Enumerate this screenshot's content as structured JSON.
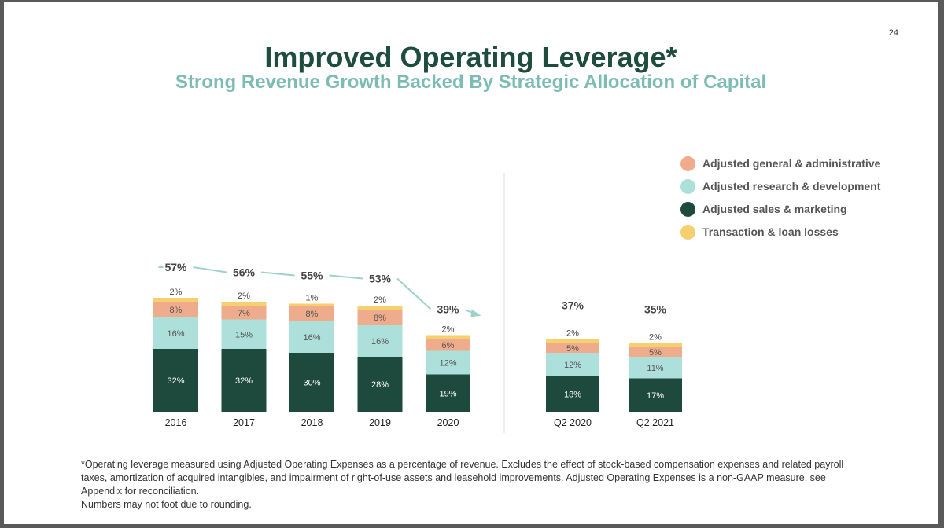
{
  "page_number": "24",
  "title": "Improved Operating Leverage*",
  "subtitle": "Strong Revenue Growth Backed By Strategic Allocation of Capital",
  "colors": {
    "sales_marketing": "#1e4a3d",
    "research_development": "#ade0da",
    "general_admin": "#eeac8d",
    "transaction_loan": "#f6cf6e",
    "trend_arrow": "#9dd2cc"
  },
  "legend": [
    {
      "label": "Adjusted general & administrative",
      "color": "#eeac8d"
    },
    {
      "label": "Adjusted research & development",
      "color": "#ade0da"
    },
    {
      "label": "Adjusted sales & marketing",
      "color": "#1e4a3d"
    },
    {
      "label": "Transaction & loan losses",
      "color": "#f6cf6e"
    }
  ],
  "chart_data": [
    {
      "type": "bar",
      "stacked": true,
      "categories": [
        "2016",
        "2017",
        "2018",
        "2019",
        "2020"
      ],
      "totals": [
        "57%",
        "56%",
        "55%",
        "53%",
        "39%"
      ],
      "series": [
        {
          "name": "Adjusted sales & marketing",
          "values": [
            32,
            32,
            30,
            28,
            19
          ],
          "labels": [
            "32%",
            "32%",
            "30%",
            "28%",
            "19%"
          ],
          "color": "#1e4a3d"
        },
        {
          "name": "Adjusted research & development",
          "values": [
            16,
            15,
            16,
            16,
            12
          ],
          "labels": [
            "16%",
            "15%",
            "16%",
            "16%",
            "12%"
          ],
          "color": "#ade0da"
        },
        {
          "name": "Adjusted general & administrative",
          "values": [
            8,
            7,
            8,
            8,
            6
          ],
          "labels": [
            "8%",
            "7%",
            "8%",
            "8%",
            "6%"
          ],
          "color": "#eeac8d"
        },
        {
          "name": "Transaction & loan losses",
          "values": [
            2,
            2,
            1,
            2,
            2
          ],
          "labels": [
            "2%",
            "2%",
            "1%",
            "2%",
            "2%"
          ],
          "color": "#f6cf6e"
        }
      ],
      "trend_arrow": true
    },
    {
      "type": "bar",
      "stacked": true,
      "categories": [
        "Q2 2020",
        "Q2 2021"
      ],
      "totals": [
        "37%",
        "35%"
      ],
      "series": [
        {
          "name": "Adjusted sales & marketing",
          "values": [
            18,
            17
          ],
          "labels": [
            "18%",
            "17%"
          ],
          "color": "#1e4a3d"
        },
        {
          "name": "Adjusted research & development",
          "values": [
            12,
            11
          ],
          "labels": [
            "12%",
            "11%"
          ],
          "color": "#ade0da"
        },
        {
          "name": "Adjusted general & administrative",
          "values": [
            5,
            5
          ],
          "labels": [
            "5%",
            "5%"
          ],
          "color": "#eeac8d"
        },
        {
          "name": "Transaction & loan losses",
          "values": [
            2,
            2
          ],
          "labels": [
            "2%",
            "2%"
          ],
          "color": "#f6cf6e"
        }
      ]
    }
  ],
  "footnote": {
    "line1": "*Operating leverage measured using Adjusted Operating Expenses as a percentage of revenue. Excludes the effect of stock-based compensation expenses and related payroll taxes, amortization of acquired intangibles, and impairment of right-of-use assets and leasehold improvements. Adjusted Operating Expenses is a non-GAAP measure, see Appendix for reconciliation.",
    "line2": "Numbers may not foot due to rounding."
  }
}
